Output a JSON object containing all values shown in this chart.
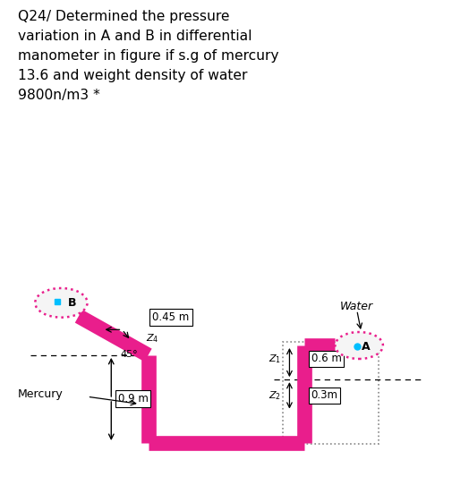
{
  "title_lines": [
    "Q24/ Determined the pressure",
    "variation in A and B in differential",
    "manometer in figure if s.g of mercury",
    "13.6 and weight density of water",
    "9800n/m3 *"
  ],
  "pipe_color": "#E91E8C",
  "pipe_lw": 12,
  "bg_color": "#ffffff",
  "text_color": "#000000",
  "label_045": "0.45 m",
  "label_09": "0.9 m",
  "label_water": "Water",
  "label_mercury": "Mercury",
  "label_06": "0.6 m",
  "label_03": "0.3m",
  "label_z1": "Z₁",
  "label_z2": "Z₂",
  "label_zs": "Z₄",
  "label_A": "A",
  "label_B": "B",
  "angle_label": "45°",
  "bubble_dot_color": "#00BFFF",
  "dotted_rect_color": "#E91E8C",
  "star_color": "#ff0000"
}
